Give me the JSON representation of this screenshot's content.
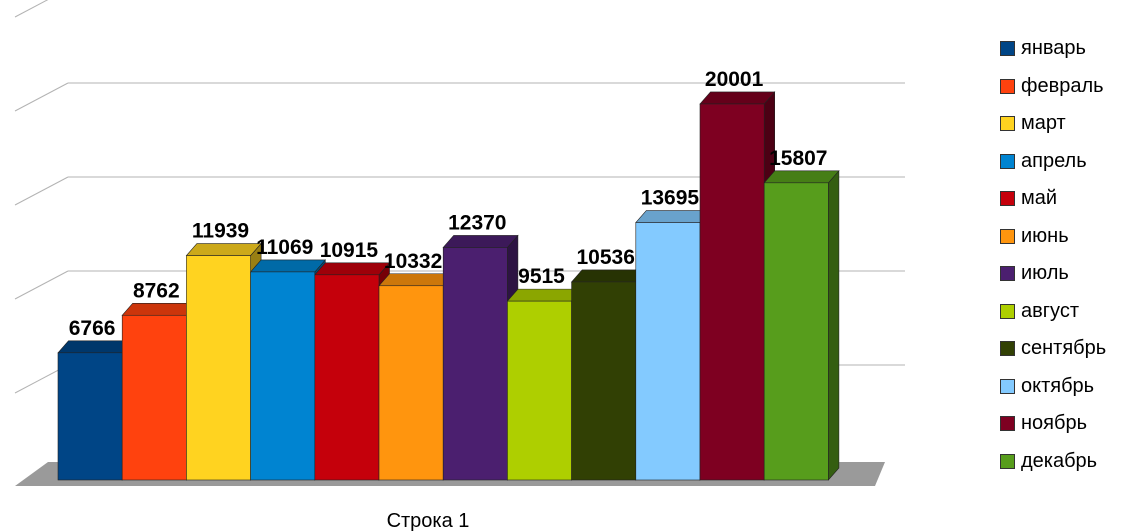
{
  "chart_data": {
    "type": "bar",
    "style": "3d-clustered",
    "categories": [
      "Строка 1"
    ],
    "series": [
      {
        "name": "январь",
        "values": [
          6766
        ],
        "color": "#004586"
      },
      {
        "name": "февраль",
        "values": [
          8762
        ],
        "color": "#ff420e"
      },
      {
        "name": "март",
        "values": [
          11939
        ],
        "color": "#ffd320"
      },
      {
        "name": "апрель",
        "values": [
          11069
        ],
        "color": "#0084d1"
      },
      {
        "name": "май",
        "values": [
          10915
        ],
        "color": "#c5000b"
      },
      {
        "name": "июнь",
        "values": [
          10332
        ],
        "color": "#ff950e"
      },
      {
        "name": "июль",
        "values": [
          12370
        ],
        "color": "#4b1f6f"
      },
      {
        "name": "август",
        "values": [
          9515
        ],
        "color": "#aecf00"
      },
      {
        "name": "сентябрь",
        "values": [
          10536
        ],
        "color": "#314004"
      },
      {
        "name": "октябрь",
        "values": [
          13695
        ],
        "color": "#83caff"
      },
      {
        "name": "ноябрь",
        "values": [
          20001
        ],
        "color": "#7e0021"
      },
      {
        "name": "декабрь",
        "values": [
          15807
        ],
        "color": "#579d1c"
      }
    ],
    "ylim": [
      0,
      25000
    ],
    "grid": true,
    "legend": "right",
    "data_labels": true
  }
}
